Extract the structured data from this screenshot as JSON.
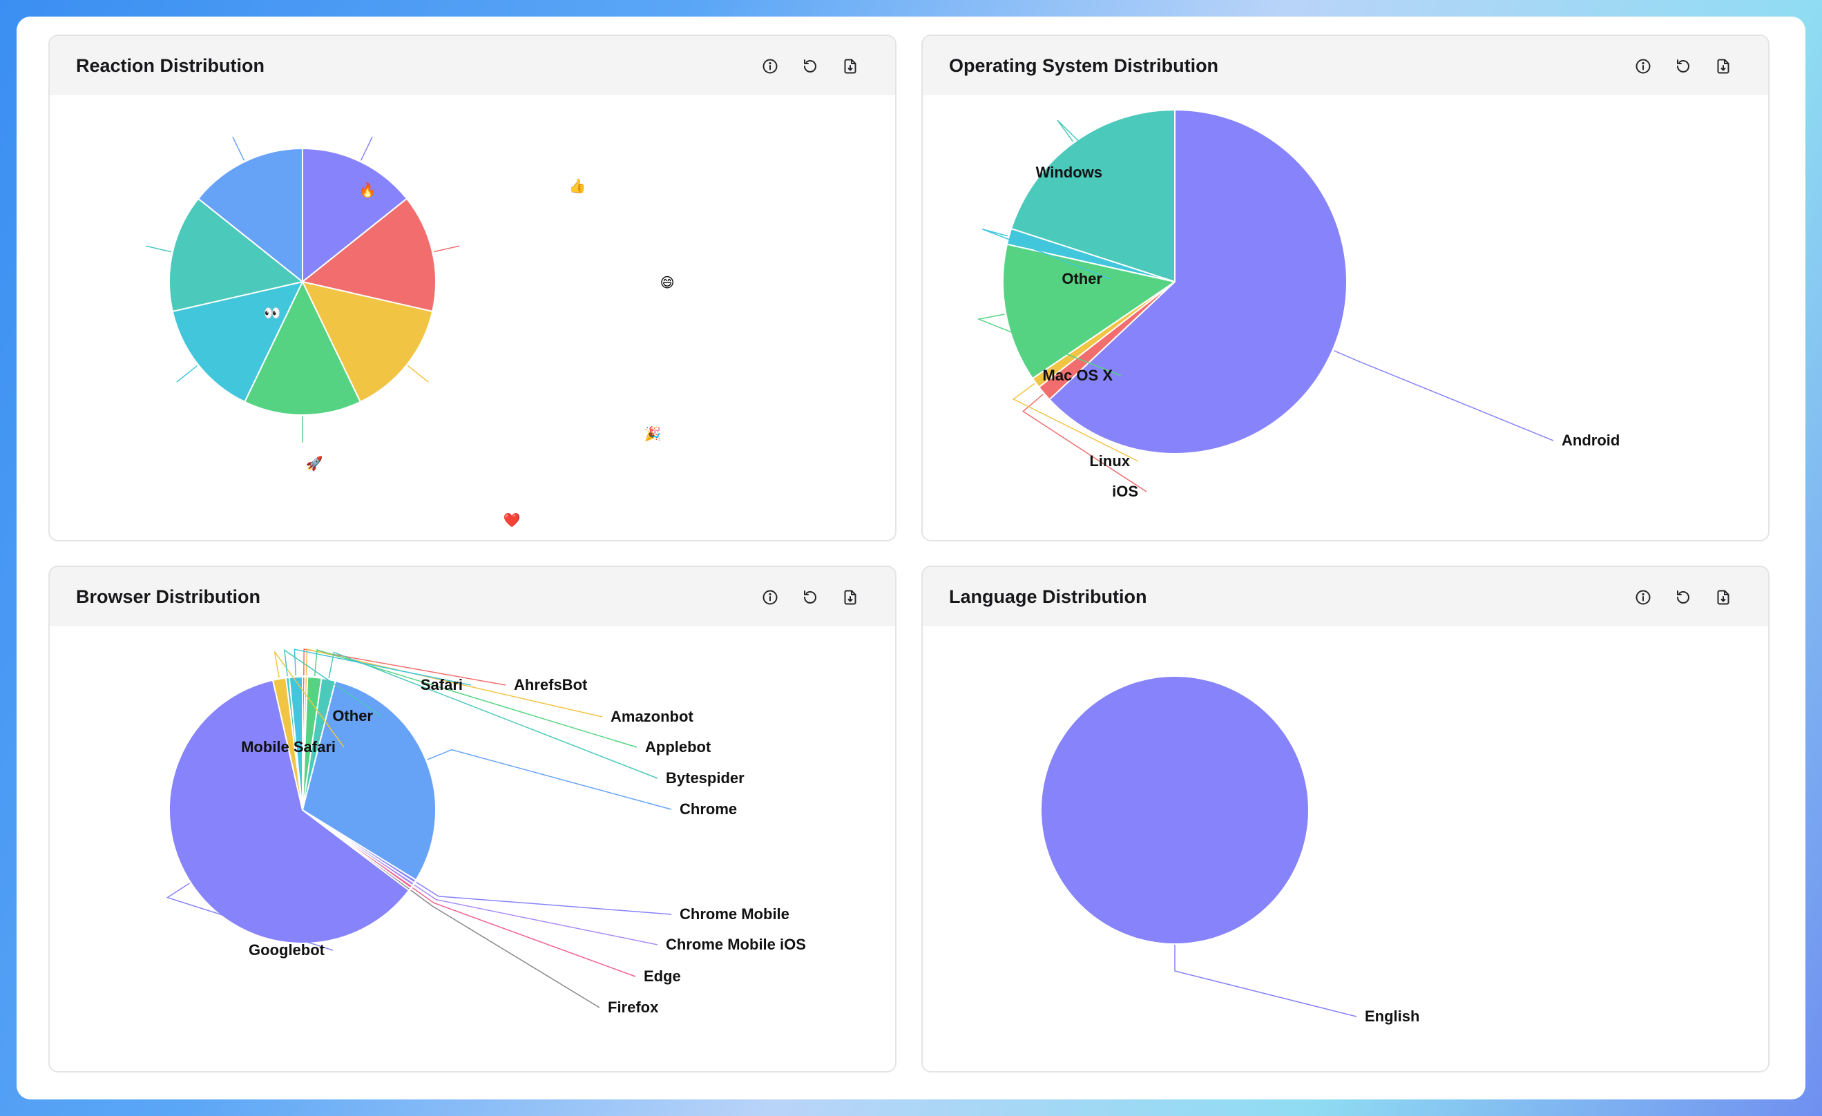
{
  "colors": {
    "purple": "#8683fb",
    "red": "#f26d6d",
    "yellow": "#f2c443",
    "green": "#55d382",
    "cyan": "#41c6dc",
    "teal": "#4bc9bb",
    "blue": "#66a2f6",
    "pink": "#f06292",
    "violet": "#a78bfa",
    "gray": "#888888"
  },
  "icons": {
    "info": "info-icon",
    "reset": "reset-icon",
    "export": "export-file-icon"
  },
  "cards": [
    {
      "id": "reactions",
      "title": "Reaction Distribution"
    },
    {
      "id": "os",
      "title": "Operating System Distribution"
    },
    {
      "id": "browser",
      "title": "Browser Distribution"
    },
    {
      "id": "language",
      "title": "Language Distribution"
    }
  ],
  "chart_data": [
    {
      "id": "reactions",
      "type": "pie",
      "title": "Reaction Distribution",
      "series": [
        {
          "name": "👍",
          "value": 1,
          "color": "#8683fb"
        },
        {
          "name": "😄",
          "value": 1,
          "color": "#f26d6d"
        },
        {
          "name": "🎉",
          "value": 1,
          "color": "#f2c443"
        },
        {
          "name": "❤️",
          "value": 1,
          "color": "#55d382"
        },
        {
          "name": "🚀",
          "value": 1,
          "color": "#41c6dc"
        },
        {
          "name": "👀",
          "value": 1,
          "color": "#4bc9bb"
        },
        {
          "name": "🔥",
          "value": 1,
          "color": "#66a2f6"
        }
      ]
    },
    {
      "id": "os",
      "type": "pie",
      "title": "Operating System Distribution",
      "series": [
        {
          "name": "Android",
          "value": 63,
          "color": "#8683fb"
        },
        {
          "name": "iOS",
          "value": 1.5,
          "color": "#f26d6d"
        },
        {
          "name": "Linux",
          "value": 1,
          "color": "#f2c443"
        },
        {
          "name": "Mac OS X",
          "value": 13,
          "color": "#55d382"
        },
        {
          "name": "Other",
          "value": 1.5,
          "color": "#41c6dc"
        },
        {
          "name": "Windows",
          "value": 20,
          "color": "#4bc9bb"
        }
      ]
    },
    {
      "id": "browser",
      "type": "pie",
      "title": "Browser Distribution",
      "series": [
        {
          "name": "AhrefsBot",
          "value": 0.3,
          "color": "#f26d6d"
        },
        {
          "name": "Amazonbot",
          "value": 0.3,
          "color": "#f2c443"
        },
        {
          "name": "Applebot",
          "value": 1.7,
          "color": "#55d382"
        },
        {
          "name": "Bytespider",
          "value": 1.7,
          "color": "#4bc9bb"
        },
        {
          "name": "Chrome",
          "value": 30,
          "color": "#66a2f6"
        },
        {
          "name": "Chrome Mobile",
          "value": 0.4,
          "color": "#8683fb"
        },
        {
          "name": "Chrome Mobile iOS",
          "value": 0.4,
          "color": "#a78bfa"
        },
        {
          "name": "Edge",
          "value": 0.4,
          "color": "#f06292"
        },
        {
          "name": "Firefox",
          "value": 0.3,
          "color": "#888888"
        },
        {
          "name": "Googlebot",
          "value": 61.5,
          "color": "#8683fb"
        },
        {
          "name": "Mobile Safari",
          "value": 1.6,
          "color": "#f2c443"
        },
        {
          "name": "Other",
          "value": 0.4,
          "color": "#4bc9bb"
        },
        {
          "name": "Safari",
          "value": 1.6,
          "color": "#41c6dc"
        }
      ]
    },
    {
      "id": "language",
      "type": "pie",
      "title": "Language Distribution",
      "series": [
        {
          "name": "English",
          "value": 100,
          "color": "#8683fb"
        }
      ]
    }
  ]
}
